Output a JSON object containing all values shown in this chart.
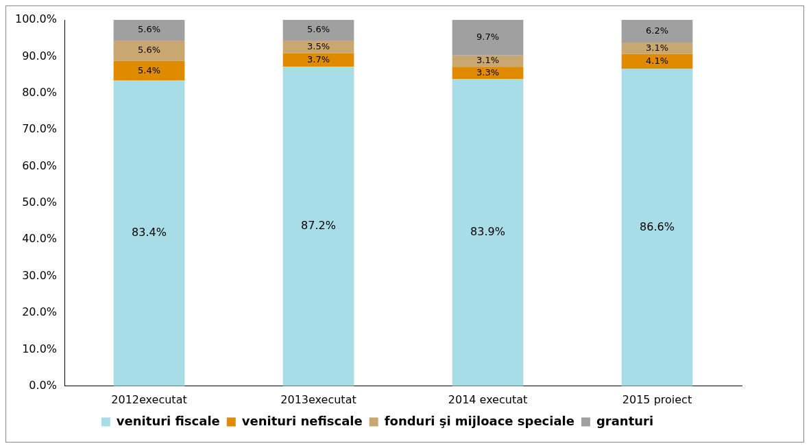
{
  "chart_data": {
    "type": "bar",
    "stacked": true,
    "categories": [
      "2012executat",
      "2013executat",
      "2014 executat",
      "2015 proiect"
    ],
    "series": [
      {
        "name": "venituri fiscale",
        "color": "#a8dce6",
        "values": [
          83.4,
          87.2,
          83.9,
          86.6
        ],
        "value_labels": [
          "83.4%",
          "87.2%",
          "83.9%",
          "86.6%"
        ]
      },
      {
        "name": "venituri nefiscale",
        "color": "#e08a00",
        "values": [
          5.4,
          3.7,
          3.3,
          4.1
        ],
        "value_labels": [
          "5.4%",
          "3.7%",
          "3.3%",
          "4.1%"
        ]
      },
      {
        "name": "fonduri şi mijloace speciale",
        "color": "#c8a870",
        "values": [
          5.6,
          3.5,
          3.1,
          3.1
        ],
        "value_labels": [
          "5.6%",
          "3.5%",
          "3.1%",
          "3.1%"
        ]
      },
      {
        "name": "granturi",
        "color": "#a0a0a0",
        "values": [
          5.6,
          5.6,
          9.7,
          6.2
        ],
        "value_labels": [
          "5.6%",
          "5.6%",
          "9.7%",
          "6.2%"
        ]
      }
    ],
    "ylim": [
      0,
      100
    ],
    "yticks": [
      {
        "value": 0,
        "label": "0.0%"
      },
      {
        "value": 10,
        "label": "10.0%"
      },
      {
        "value": 20,
        "label": "20.0%"
      },
      {
        "value": 30,
        "label": "30.0%"
      },
      {
        "value": 40,
        "label": "40.0%"
      },
      {
        "value": 50,
        "label": "50.0%"
      },
      {
        "value": 60,
        "label": "60.0%"
      },
      {
        "value": 70,
        "label": "70.0%"
      },
      {
        "value": 80,
        "label": "80.0%"
      },
      {
        "value": 90,
        "label": "90.0%"
      },
      {
        "value": 100,
        "label": "100.0%"
      }
    ],
    "legend": "bottom"
  }
}
